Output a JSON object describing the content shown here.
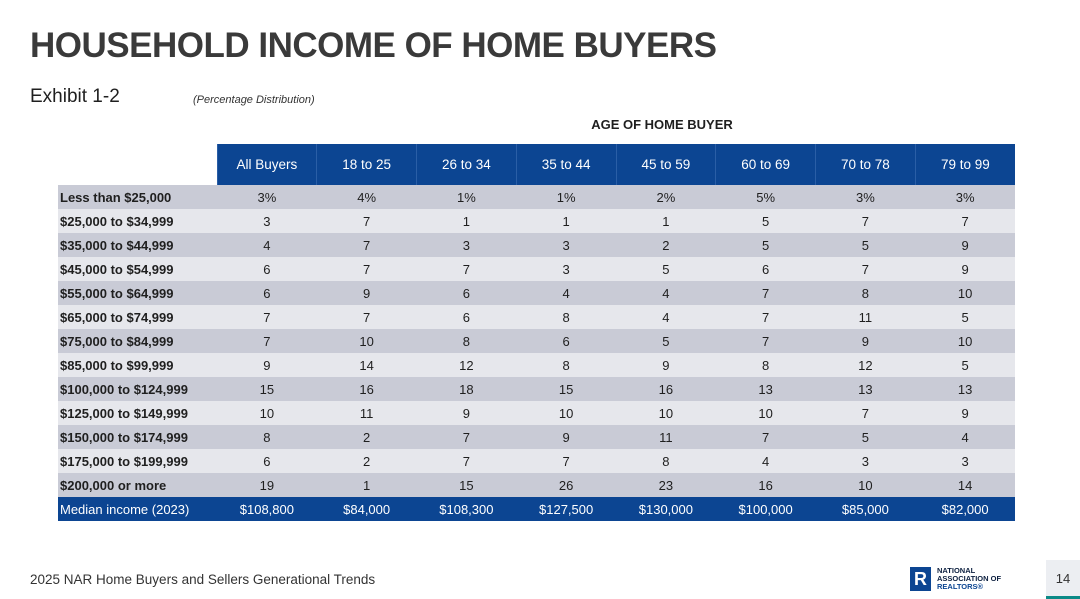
{
  "title": "HOUSEHOLD INCOME OF HOME BUYERS",
  "exhibit": "Exhibit 1-2",
  "subtitle": "(Percentage Distribution)",
  "group_heading": "AGE OF HOME BUYER",
  "columns": [
    "All Buyers",
    "18 to 25",
    "26 to 34",
    "35 to 44",
    "45 to 59",
    "60 to 69",
    "70 to 78",
    "79 to 99"
  ],
  "rows": [
    {
      "label": "Less than $25,000",
      "values": [
        "3%",
        "4%",
        "1%",
        "1%",
        "2%",
        "5%",
        "3%",
        "3%"
      ]
    },
    {
      "label": "$25,000 to $34,999",
      "values": [
        "3",
        "7",
        "1",
        "1",
        "1",
        "5",
        "7",
        "7"
      ]
    },
    {
      "label": "$35,000 to $44,999",
      "values": [
        "4",
        "7",
        "3",
        "3",
        "2",
        "5",
        "5",
        "9"
      ]
    },
    {
      "label": "$45,000 to $54,999",
      "values": [
        "6",
        "7",
        "7",
        "3",
        "5",
        "6",
        "7",
        "9"
      ]
    },
    {
      "label": "$55,000 to $64,999",
      "values": [
        "6",
        "9",
        "6",
        "4",
        "4",
        "7",
        "8",
        "10"
      ]
    },
    {
      "label": "$65,000 to $74,999",
      "values": [
        "7",
        "7",
        "6",
        "8",
        "4",
        "7",
        "11",
        "5"
      ]
    },
    {
      "label": "$75,000 to $84,999",
      "values": [
        "7",
        "10",
        "8",
        "6",
        "5",
        "7",
        "9",
        "10"
      ]
    },
    {
      "label": "$85,000 to $99,999",
      "values": [
        "9",
        "14",
        "12",
        "8",
        "9",
        "8",
        "12",
        "5"
      ]
    },
    {
      "label": "$100,000 to $124,999",
      "values": [
        "15",
        "16",
        "18",
        "15",
        "16",
        "13",
        "13",
        "13"
      ]
    },
    {
      "label": "$125,000 to $149,999",
      "values": [
        "10",
        "11",
        "9",
        "10",
        "10",
        "10",
        "7",
        "9"
      ]
    },
    {
      "label": "$150,000 to $174,999",
      "values": [
        "8",
        "2",
        "7",
        "9",
        "11",
        "7",
        "5",
        "4"
      ]
    },
    {
      "label": "$175,000 to $199,999",
      "values": [
        "6",
        "2",
        "7",
        "7",
        "8",
        "4",
        "3",
        "3"
      ]
    },
    {
      "label": "$200,000 or more",
      "values": [
        "19",
        "1",
        "15",
        "26",
        "23",
        "16",
        "10",
        "14"
      ]
    }
  ],
  "median": {
    "label": "Median income (2023)",
    "values": [
      "$108,800",
      "$84,000",
      "$108,300",
      "$127,500",
      "$130,000",
      "$100,000",
      "$85,000",
      "$82,000"
    ]
  },
  "footer": "2025 NAR Home Buyers and Sellers Generational Trends",
  "logo": {
    "line1": "NATIONAL",
    "line2": "ASSOCIATION OF",
    "line3": "REALTORS®"
  },
  "page_number": "14",
  "colors": {
    "header_blue": "#0c4592",
    "row_dark": "#c9cbd6",
    "row_light": "#e6e7ec",
    "accent_teal": "#0b8a87"
  }
}
